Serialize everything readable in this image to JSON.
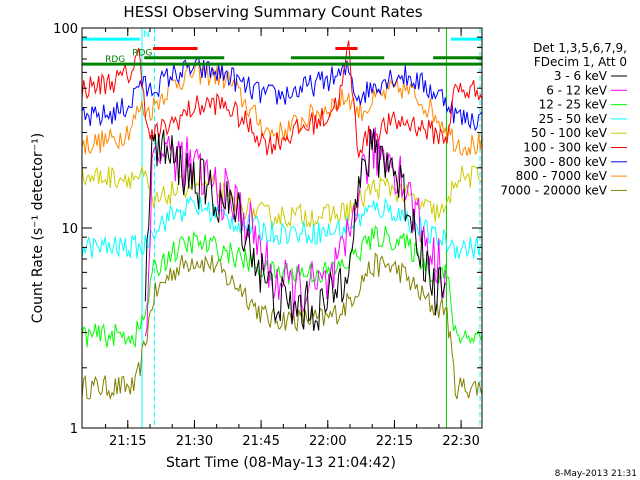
{
  "chart_data": {
    "type": "line",
    "title": "HESSI Observing Summary Count Rates",
    "xlabel": "Start Time (08-May-13 21:04:42)",
    "ylabel": "Count Rate (s⁻¹ detector⁻¹)",
    "yscale": "log",
    "ylim": [
      1,
      100
    ],
    "xlim_minutes": [
      0,
      90
    ],
    "x_ticks": [
      {
        "label": "21:15",
        "value": 10.3
      },
      {
        "label": "21:30",
        "value": 25.3
      },
      {
        "label": "21:45",
        "value": 40.3
      },
      {
        "label": "22:00",
        "value": 55.3
      },
      {
        "label": "22:15",
        "value": 70.3
      },
      {
        "label": "22:30",
        "value": 85.3
      }
    ],
    "y_ticks": [
      {
        "label": "1",
        "value": 1
      },
      {
        "label": "10",
        "value": 10
      },
      {
        "label": "100",
        "value": 100
      }
    ],
    "legend": {
      "header_lines": [
        "Det 1,3,5,6,7,9,",
        "FDecim 1, Att 0"
      ],
      "placement": "right"
    },
    "series": [
      {
        "name": "3 - 6 keV",
        "color": "#000000",
        "x": [
          0,
          12,
          14,
          16,
          20,
          25,
          30,
          33,
          36,
          39,
          42,
          46,
          50,
          55,
          59,
          62,
          64,
          66,
          69,
          72,
          75,
          79,
          82,
          84,
          86,
          90
        ],
        "values": [
          null,
          null,
          4,
          28,
          22,
          18,
          14,
          13,
          11,
          7,
          5,
          4,
          4,
          4,
          6,
          14,
          22,
          24,
          22,
          16,
          10,
          5,
          5,
          null,
          null,
          null
        ]
      },
      {
        "name": "6 - 12 keV",
        "color": "#ff00ff",
        "x": [
          0,
          12,
          14,
          16,
          20,
          25,
          30,
          33,
          36,
          39,
          42,
          46,
          50,
          55,
          59,
          62,
          64,
          66,
          69,
          72,
          75,
          79,
          82,
          84,
          86,
          90
        ],
        "values": [
          null,
          null,
          2,
          24,
          24,
          20,
          16,
          14,
          12,
          9,
          6,
          5,
          5,
          5,
          7,
          15,
          22,
          24,
          23,
          18,
          12,
          7,
          6,
          null,
          null,
          null
        ]
      },
      {
        "name": "12 - 25 keV",
        "color": "#00ff00",
        "x": [
          0,
          12,
          14,
          16,
          20,
          25,
          30,
          33,
          36,
          39,
          42,
          46,
          50,
          55,
          59,
          62,
          64,
          66,
          69,
          72,
          75,
          79,
          82,
          84,
          86,
          90
        ],
        "values": [
          2.9,
          2.9,
          3.5,
          6,
          7.5,
          8.5,
          8,
          7.5,
          7,
          6.5,
          6,
          6,
          6,
          6,
          6.5,
          7.5,
          8.5,
          9,
          9,
          8.5,
          7.5,
          6,
          6,
          2.9,
          2.9,
          2.9
        ]
      },
      {
        "name": "25 - 50 keV",
        "color": "#00ffff",
        "x": [
          0,
          12,
          14,
          16,
          20,
          25,
          30,
          33,
          36,
          39,
          42,
          46,
          50,
          55,
          59,
          62,
          64,
          66,
          69,
          72,
          75,
          79,
          82,
          84,
          86,
          90
        ],
        "values": [
          8,
          8,
          8,
          10,
          11.5,
          13,
          12,
          11,
          10.5,
          10,
          9.5,
          9.5,
          9.5,
          9.5,
          10,
          11,
          12,
          12.5,
          12.5,
          11.5,
          10.5,
          9,
          8.5,
          8,
          8,
          8
        ]
      },
      {
        "name": "50 - 100 keV",
        "color": "#cccc00",
        "x": [
          0,
          12,
          14,
          16,
          20,
          25,
          30,
          33,
          36,
          39,
          42,
          46,
          50,
          55,
          59,
          62,
          64,
          66,
          69,
          72,
          75,
          79,
          82,
          84,
          86,
          90
        ],
        "values": [
          18,
          18,
          18,
          13,
          15,
          17,
          16,
          14,
          13,
          12,
          11.5,
          11.5,
          11.5,
          11.5,
          12,
          13,
          15,
          16,
          16,
          15,
          13.5,
          12,
          12,
          18,
          18,
          18
        ]
      },
      {
        "name": "100 - 300 keV",
        "color": "#ff0000",
        "x": [
          0,
          4,
          8,
          11,
          13,
          15,
          20,
          25,
          30,
          33,
          36,
          39,
          42,
          45,
          50,
          55,
          58,
          60,
          62,
          64,
          66,
          69,
          72,
          75,
          79,
          82,
          84,
          86,
          90
        ],
        "values": [
          50,
          52,
          55,
          60,
          75,
          28,
          33,
          40,
          42,
          40,
          35,
          30,
          26,
          28,
          32,
          36,
          45,
          80,
          25,
          28,
          30,
          33,
          34,
          33,
          30,
          28,
          50,
          48,
          50
        ]
      },
      {
        "name": "300 - 800 keV",
        "color": "#0000ff",
        "x": [
          0,
          4,
          8,
          11,
          13,
          15,
          20,
          25,
          30,
          33,
          36,
          39,
          42,
          45,
          50,
          55,
          58,
          60,
          62,
          64,
          66,
          69,
          72,
          75,
          79,
          82,
          84,
          86,
          90
        ],
        "values": [
          35,
          36,
          38,
          42,
          55,
          48,
          58,
          63,
          60,
          58,
          52,
          48,
          46,
          46,
          50,
          55,
          58,
          62,
          45,
          48,
          52,
          57,
          58,
          55,
          48,
          44,
          37,
          35,
          35
        ]
      },
      {
        "name": "800 - 7000 keV",
        "color": "#ff8800",
        "x": [
          0,
          4,
          8,
          11,
          13,
          15,
          20,
          25,
          30,
          33,
          36,
          39,
          42,
          45,
          50,
          55,
          58,
          60,
          62,
          64,
          66,
          69,
          72,
          75,
          79,
          82,
          84,
          86,
          90
        ],
        "values": [
          26,
          27,
          28,
          32,
          40,
          38,
          52,
          60,
          58,
          55,
          44,
          36,
          30,
          30,
          35,
          40,
          43,
          46,
          38,
          40,
          44,
          48,
          50,
          46,
          38,
          32,
          27,
          26,
          26
        ]
      },
      {
        "name": "7000 - 20000 keV",
        "color": "#808000",
        "x": [
          0,
          12,
          14,
          16,
          20,
          25,
          30,
          33,
          36,
          39,
          42,
          46,
          50,
          55,
          59,
          62,
          64,
          66,
          69,
          72,
          75,
          79,
          82,
          84,
          86,
          90
        ],
        "values": [
          1.6,
          1.6,
          2.5,
          4.5,
          6,
          7,
          6.5,
          5.5,
          5,
          4,
          3.5,
          3.5,
          3.5,
          3.5,
          4,
          5,
          6,
          6.5,
          6.5,
          6,
          5,
          4,
          4,
          1.6,
          1.6,
          1.6
        ]
      }
    ],
    "flags": [
      {
        "label": "N",
        "color": "#00ffff",
        "y": 88,
        "segments": [
          [
            0,
            13
          ],
          [
            83,
            90
          ]
        ]
      },
      {
        "label": "RDG",
        "color": "#008000",
        "y": 66,
        "segments": [
          [
            0,
            90
          ]
        ]
      },
      {
        "label": "RDG",
        "color": "#008000",
        "y": 71,
        "segments": [
          [
            14,
            32
          ],
          [
            47,
            68
          ],
          [
            79,
            90
          ]
        ]
      },
      {
        "label": "",
        "color": "#ff0000",
        "y": 79,
        "segments": [
          [
            16,
            26
          ],
          [
            57,
            62
          ]
        ]
      }
    ],
    "vlines_cyan_dashed": [
      16.3,
      90
    ],
    "vlines_cyan_solid": [
      13.5
    ],
    "vlines_green_solid": [
      82
    ]
  },
  "footer_stamp": "8-May-2013 21:31"
}
